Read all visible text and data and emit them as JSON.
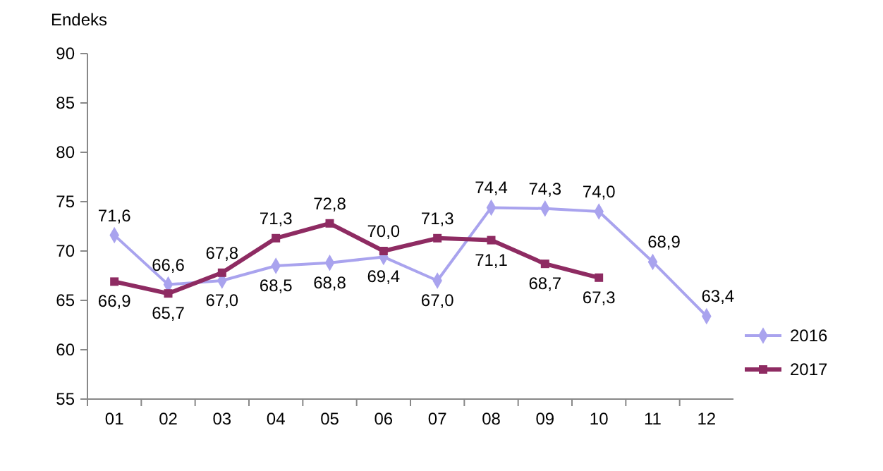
{
  "chart_data": {
    "type": "line",
    "ylabel": "Endeks",
    "categories": [
      "01",
      "02",
      "03",
      "04",
      "05",
      "06",
      "07",
      "08",
      "09",
      "10",
      "11",
      "12"
    ],
    "ylim": [
      55,
      90
    ],
    "yticks": [
      55,
      60,
      65,
      70,
      75,
      80,
      85,
      90
    ],
    "grid": false,
    "legend": "right",
    "series": [
      {
        "name": "2016",
        "color": "#a9a3ee",
        "marker": "diamond",
        "values": [
          71.6,
          66.6,
          67.0,
          68.5,
          68.8,
          69.4,
          67.0,
          74.4,
          74.3,
          74.0,
          68.9,
          63.4
        ],
        "value_labels": [
          "71,6",
          "66,6",
          "67,0",
          "68,5",
          "68,8",
          "69,4",
          "67,0",
          "74,4",
          "74,3",
          "74,0",
          "68,9",
          "63,4"
        ]
      },
      {
        "name": "2017",
        "color": "#8e2b62",
        "marker": "square",
        "values": [
          66.9,
          65.7,
          67.8,
          71.3,
          72.8,
          70.0,
          71.3,
          71.1,
          68.7,
          67.3,
          null,
          null
        ],
        "value_labels": [
          "66,9",
          "65,7",
          "67,8",
          "71,3",
          "72,8",
          "70,0",
          "71,3",
          "71,1",
          "68,7",
          "67,3",
          null,
          null
        ]
      }
    ]
  }
}
